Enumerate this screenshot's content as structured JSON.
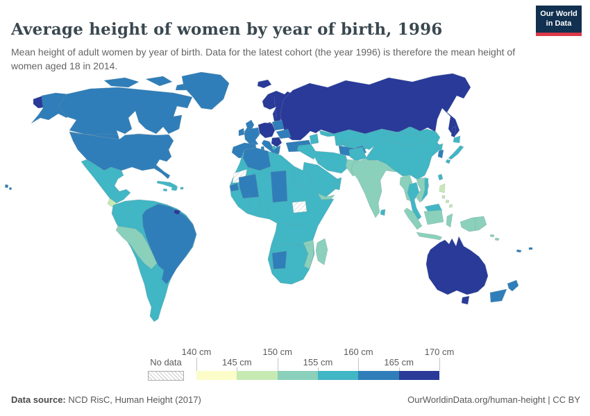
{
  "header": {
    "title": "Average height of women by year of birth, 1996",
    "subtitle": "Mean height of adult women by year of birth. Data for the latest cohort (the year 1996) is therefore the mean height of women aged 18 in 2014.",
    "logo": {
      "line1": "Our World",
      "line2": "in Data",
      "bg_color": "#12304f",
      "accent_color": "#d93a4a"
    }
  },
  "map": {
    "palette": {
      "b1": "#fcfcc9",
      "b2": "#c7e9b4",
      "b3": "#8ad0ba",
      "b4": "#41b6c4",
      "b5": "#2f7eb9",
      "b6": "#2a3a99",
      "no_data": "url(#hatch)"
    }
  },
  "legend": {
    "no_data_label": "No data",
    "bin_keys": [
      "b1",
      "b2",
      "b3",
      "b4",
      "b5",
      "b6"
    ],
    "tick_labels": [
      "140 cm",
      "145 cm",
      "150 cm",
      "155 cm",
      "160 cm",
      "165 cm",
      "170 cm"
    ]
  },
  "footer": {
    "source_label": "Data source:",
    "source_value": " NCD RisC, Human Height (2017)",
    "link": "OurWorldinData.org/human-height",
    "separator": " | ",
    "license": "CC BY"
  },
  "chart_data": {
    "type": "heatmap",
    "subtype": "choropleth world map",
    "title": "Average height of women by year of birth, 1996",
    "unit": "cm",
    "legend_position": "bottom",
    "legend_bins": [
      {
        "key": "b1",
        "range": "140-145 cm",
        "color": "#fcfcc9"
      },
      {
        "key": "b2",
        "range": "145-150 cm",
        "color": "#c7e9b4"
      },
      {
        "key": "b3",
        "range": "150-155 cm",
        "color": "#8ad0ba"
      },
      {
        "key": "b4",
        "range": "155-160 cm",
        "color": "#41b6c4"
      },
      {
        "key": "b5",
        "range": "160-165 cm",
        "color": "#2f7eb9"
      },
      {
        "key": "b6",
        "range": "165-170 cm",
        "color": "#2a3a99"
      },
      {
        "key": "no_data",
        "range": "No data",
        "color": "hatched"
      }
    ],
    "region_values": {
      "russia-wrap": "b6",
      "alaska": "b5",
      "canada": "b5",
      "arctic-islands": "b5",
      "greenland": "b5",
      "usa": "b5",
      "hawaii": "b5",
      "mexico": "b4",
      "guatemala": "b2",
      "honduras": "b3",
      "central-america": "b4",
      "cuba": "b4",
      "caribbean-islands": "b4",
      "south-america": "b4",
      "brazil": "b5",
      "peru-bolivia": "b3",
      "french-guiana": "b6",
      "iceland": "b6",
      "united-kingdom": "b5",
      "ireland": "b5",
      "scandinavia": "b6",
      "denmark": "b6",
      "central-europe": "b6",
      "balkans": "b6",
      "poland": "b5",
      "romania-hungary": "b5",
      "greece": "b5",
      "albania": "b4",
      "france": "b5",
      "iberia": "b5",
      "italy": "b5",
      "russia": "b6",
      "turkey": "b5",
      "caucasus": "b4",
      "kazakhstan": "b4",
      "turkmenistan": "b5",
      "central-asia": "b4",
      "iran": "b4",
      "iraq-syria": "b4",
      "saudi-arabia": "b4",
      "yemen": "b3",
      "oman": "b4",
      "afghanistan": "b4",
      "pakistan": "b3",
      "india": "b3",
      "sri-lanka": "b4",
      "myanmar": "b3",
      "thailand": "b4",
      "indochina": "b3",
      "vietnam": "b4",
      "china-mongolia": "b4",
      "north-korea": "b4",
      "south-korea": "b5",
      "japan": "b4",
      "sakhalin": "b6",
      "taiwan": "b4",
      "hainan": "b4",
      "philippines": "b2",
      "malaysia-borneo": "b4",
      "kalimantan": "b3",
      "sumatra": "b3",
      "java": "b3",
      "sulawesi": "b3",
      "new-guinea": "b3",
      "solomon-islands": "b3",
      "australia": "b6",
      "tasmania": "b6",
      "new-zealand": "b5",
      "pacific-islands": "b5",
      "africa": "b4",
      "morocco-algeria": "b5",
      "western-sahara": "no_data",
      "senegal": "b5",
      "mali": "b5",
      "chad": "b5",
      "south-sudan": "no_data",
      "botswana": "b5",
      "mozambique": "b3",
      "madagascar": "b3"
    }
  }
}
